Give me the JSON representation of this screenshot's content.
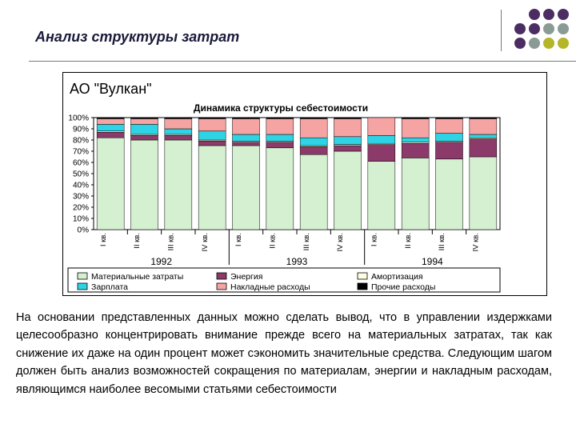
{
  "slide": {
    "title": "Анализ структуры затрат",
    "paragraph": "На основании представленных данных можно сделать вывод, что в управлении издержками целесообразно концентрировать внимание прежде всего на материальных затратах, так как снижение их даже на один процент может сэкономить значительные средства. Следующим шагом должен быть анализ возможностей сокращения по материалам, энергии и накладным расходам, являющимся наиболее весомыми статьями себестоимости"
  },
  "decor": {
    "dot_colors": {
      "purple": "#4b2d63",
      "gray": "#8a9a95",
      "olive": "#b5b52a"
    }
  },
  "chart_data": {
    "type": "bar",
    "stacked": true,
    "company": "АО \"Вулкан\"",
    "title": "Динамика структуры себестоимости",
    "categories": [
      "I кв.",
      "II кв.",
      "III кв.",
      "IV кв.",
      "I кв.",
      "II кв.",
      "III кв.",
      "IV кв.",
      "I кв.",
      "II кв.",
      "III кв.",
      "IV кв."
    ],
    "groups": [
      {
        "label": "1992",
        "start": 0,
        "end": 3
      },
      {
        "label": "1993",
        "start": 4,
        "end": 7
      },
      {
        "label": "1994",
        "start": 8,
        "end": 11
      }
    ],
    "yticks": [
      "0%",
      "10%",
      "20%",
      "30%",
      "40%",
      "50%",
      "60%",
      "70%",
      "80%",
      "90%",
      "100%"
    ],
    "ylim": [
      0,
      100
    ],
    "grid": false,
    "legend_position": "bottom",
    "series": [
      {
        "name": "Материальные затраты",
        "color": "#d4f0d0",
        "values": [
          82,
          80,
          80,
          75,
          75,
          73,
          67,
          70,
          61,
          64,
          63,
          65
        ]
      },
      {
        "name": "Энергия",
        "color": "#8b3a6a",
        "values": [
          5,
          4,
          4,
          4,
          3,
          5,
          7,
          5,
          15,
          13,
          15,
          16
        ]
      },
      {
        "name": "Амортизация",
        "color": "#fffde0",
        "values": [
          1,
          1,
          1,
          1,
          1,
          1,
          1,
          1,
          1,
          1,
          1,
          1
        ]
      },
      {
        "name": "Зарплата",
        "color": "#2ed4e6",
        "values": [
          6,
          9,
          5,
          8,
          6,
          6,
          7,
          7,
          7,
          4,
          7,
          3
        ]
      },
      {
        "name": "Накладные расходы",
        "color": "#f5a3a3",
        "values": [
          5,
          5,
          9,
          11,
          14,
          14,
          17,
          16,
          16,
          17,
          13,
          14
        ]
      },
      {
        "name": "Прочие расходы",
        "color": "#000000",
        "values": [
          1,
          1,
          1,
          1,
          1,
          1,
          1,
          1,
          0,
          1,
          1,
          1
        ]
      }
    ]
  }
}
